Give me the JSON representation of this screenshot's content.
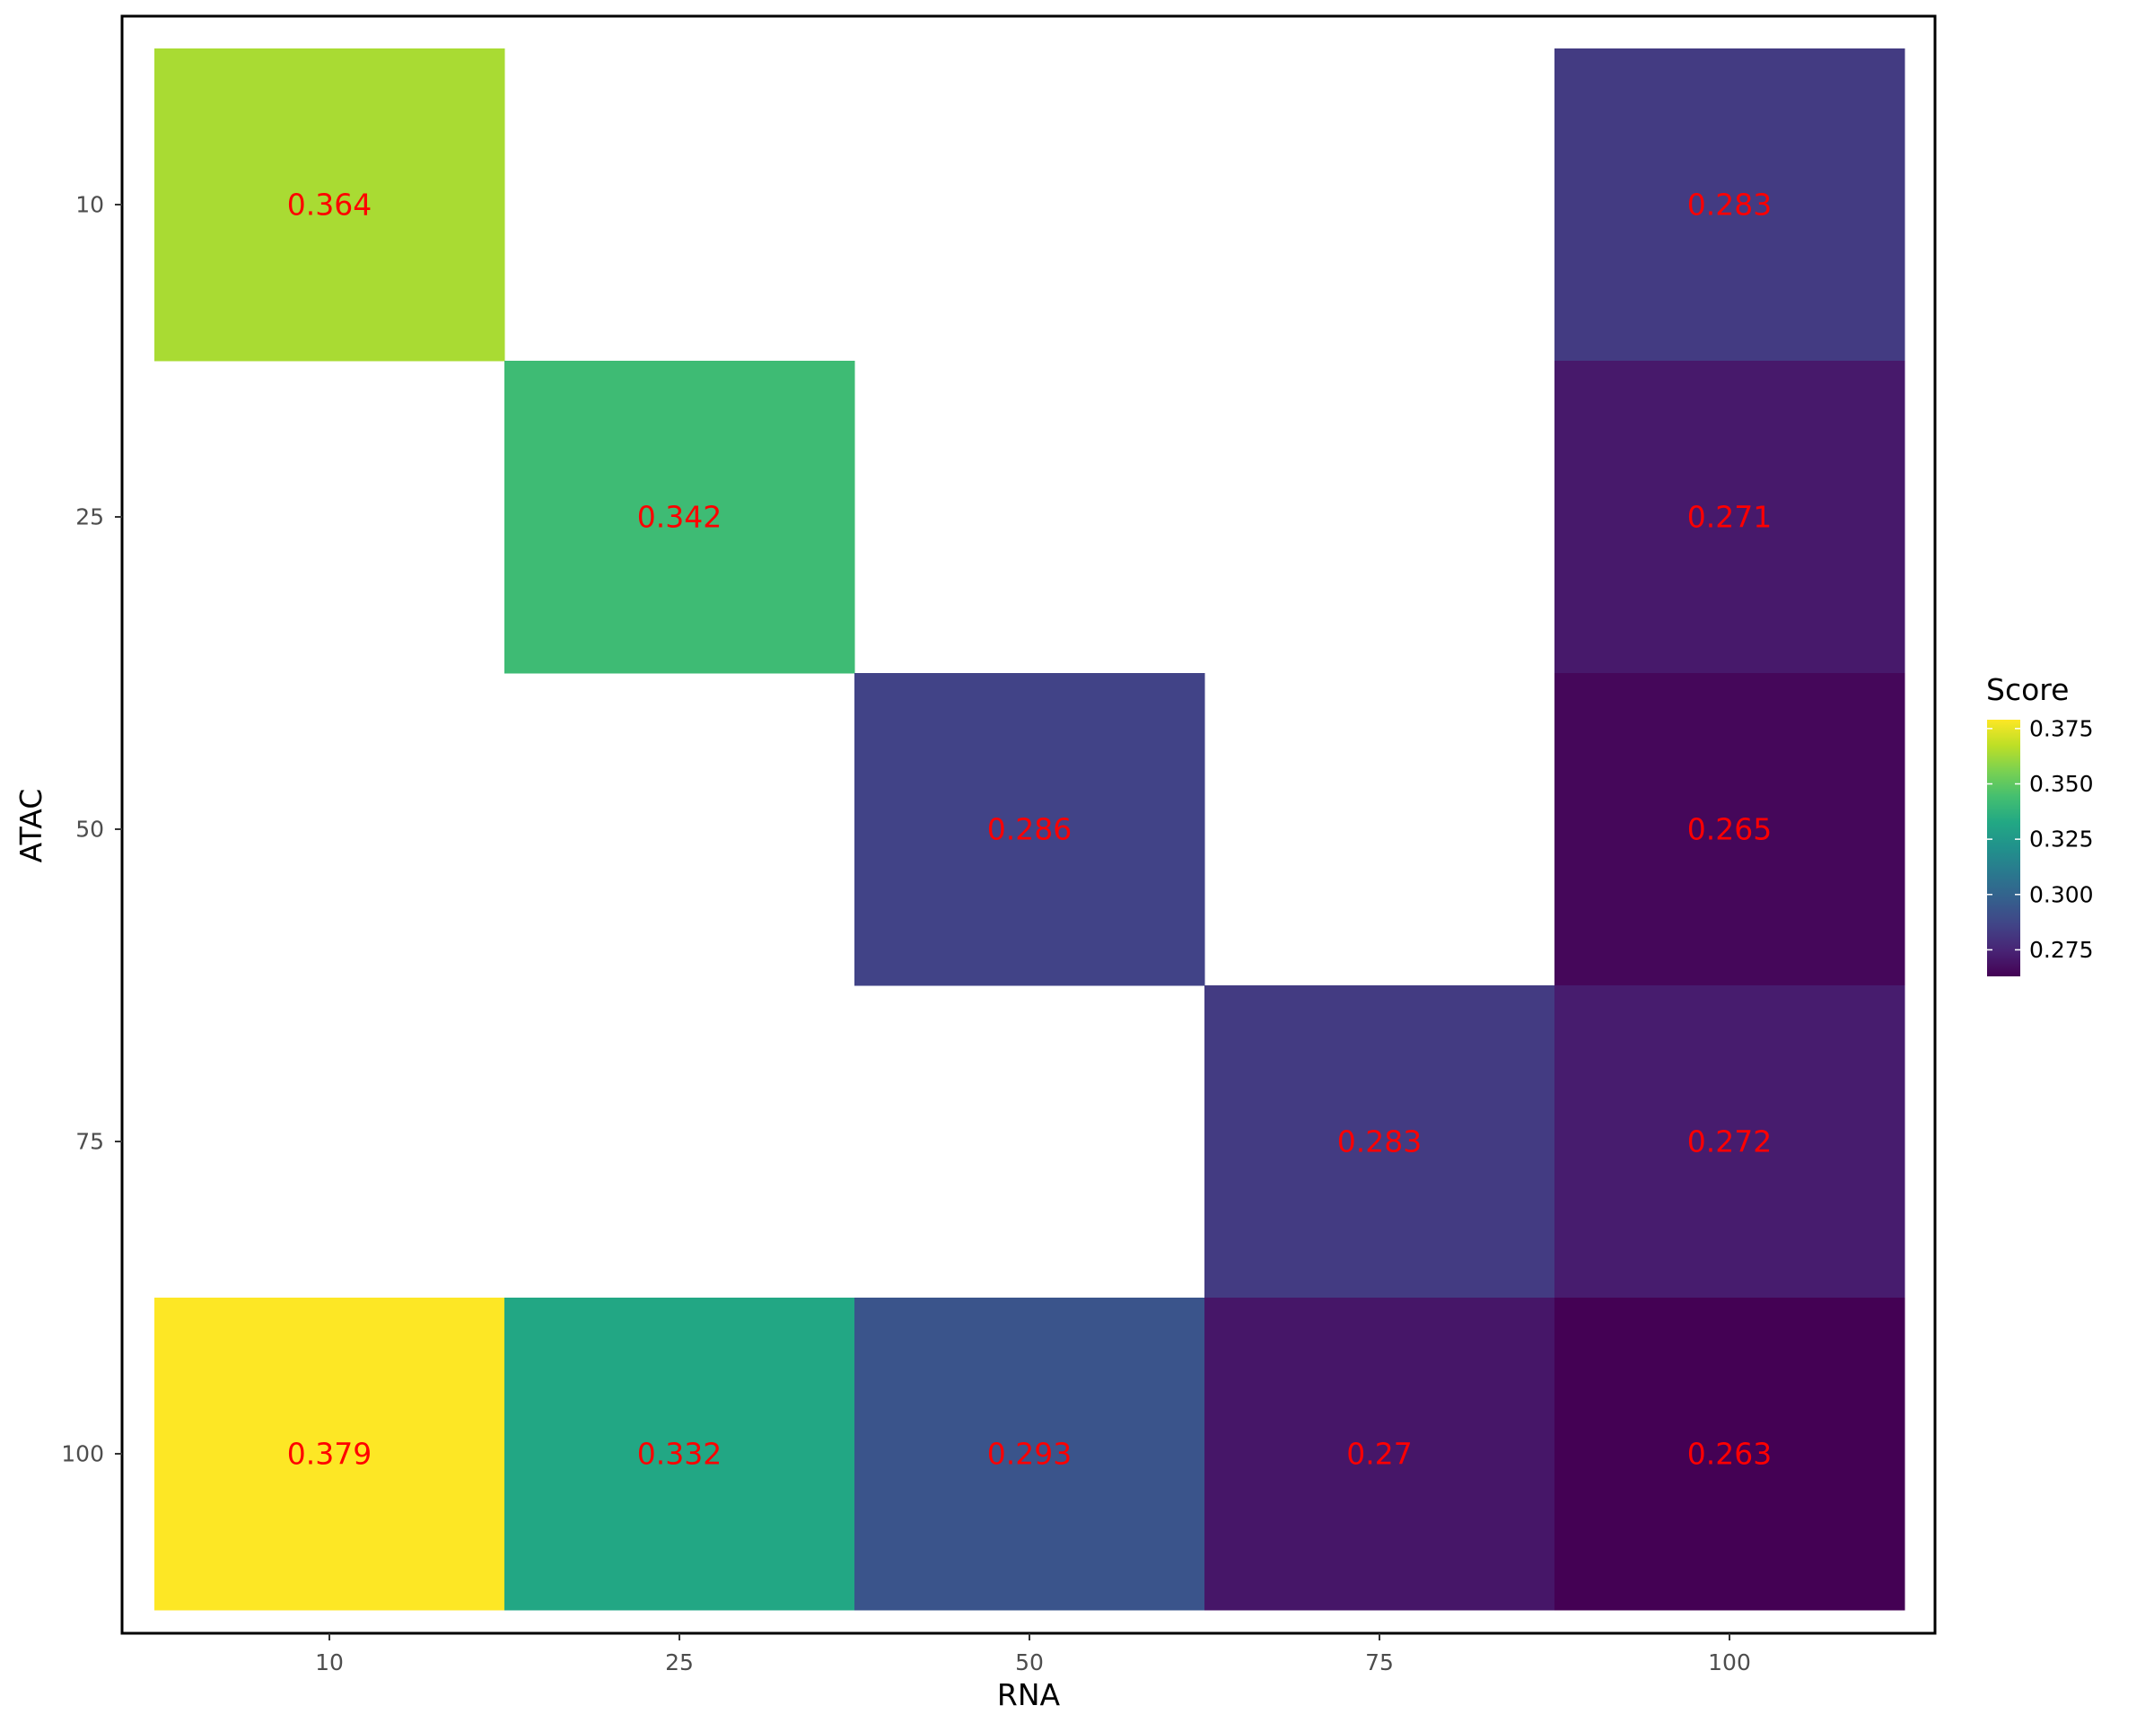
{
  "chart_data": {
    "type": "heatmap",
    "title": "",
    "xlabel": "RNA",
    "ylabel": "ATAC",
    "x_categories": [
      "10",
      "25",
      "50",
      "75",
      "100"
    ],
    "y_categories": [
      "10",
      "25",
      "50",
      "75",
      "100"
    ],
    "cells": [
      {
        "x": "10",
        "y": "10",
        "value": 0.364,
        "label": "0.364"
      },
      {
        "x": "100",
        "y": "10",
        "value": 0.283,
        "label": "0.283"
      },
      {
        "x": "25",
        "y": "25",
        "value": 0.342,
        "label": "0.342"
      },
      {
        "x": "100",
        "y": "25",
        "value": 0.271,
        "label": "0.271"
      },
      {
        "x": "50",
        "y": "50",
        "value": 0.286,
        "label": "0.286"
      },
      {
        "x": "100",
        "y": "50",
        "value": 0.265,
        "label": "0.265"
      },
      {
        "x": "75",
        "y": "75",
        "value": 0.283,
        "label": "0.283"
      },
      {
        "x": "100",
        "y": "75",
        "value": 0.272,
        "label": "0.272"
      },
      {
        "x": "10",
        "y": "100",
        "value": 0.379,
        "label": "0.379"
      },
      {
        "x": "25",
        "y": "100",
        "value": 0.332,
        "label": "0.332"
      },
      {
        "x": "50",
        "y": "100",
        "value": 0.293,
        "label": "0.293"
      },
      {
        "x": "75",
        "y": "100",
        "value": 0.27,
        "label": "0.27"
      },
      {
        "x": "100",
        "y": "100",
        "value": 0.263,
        "label": "0.263"
      }
    ],
    "label_color": "#ff0000",
    "colormap": "viridis",
    "legend": {
      "title": "Score",
      "placement": "right",
      "range": [
        0.263,
        0.379
      ],
      "ticks": [
        0.375,
        0.35,
        0.325,
        0.3,
        0.275
      ],
      "tick_labels": [
        "0.375",
        "0.350",
        "0.325",
        "0.300",
        "0.275"
      ]
    },
    "grid": false,
    "panel_border": true
  }
}
